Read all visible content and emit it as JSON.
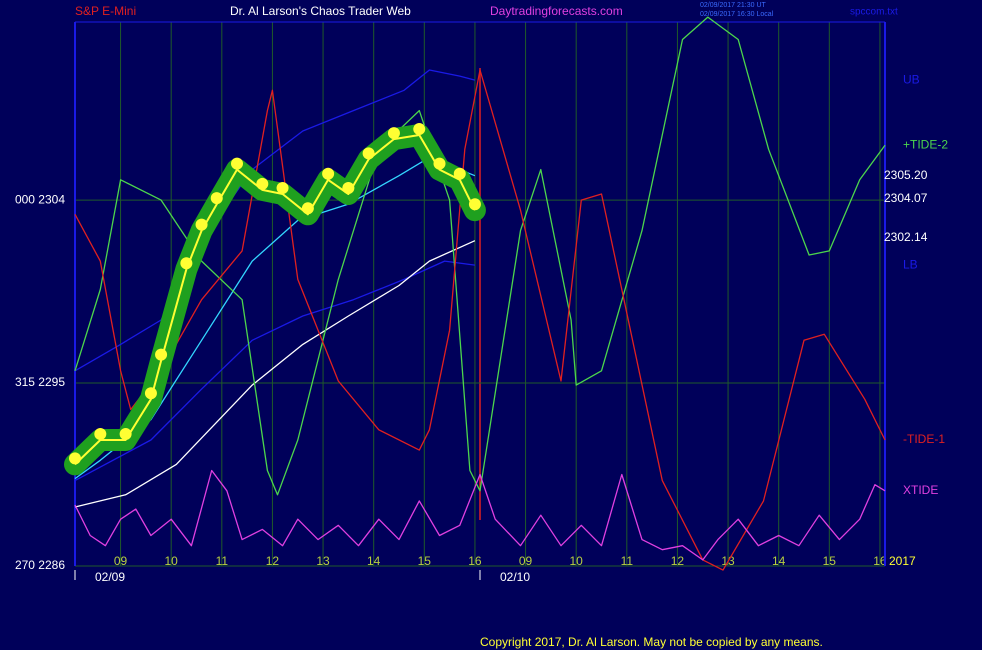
{
  "chart_data": {
    "type": "line",
    "title": "Dr. Al Larson's Chaos Trader Web",
    "symbol": "S&P E-Mini",
    "website": "Daytradingforecasts.com",
    "timestamps": [
      "02/09/2017 21:30 UT",
      "02/09/2017 16:30 Local"
    ],
    "file_name": "spccom.txt",
    "copyright": "Copyright 2017, Dr. Al Larson. May not be copied by any means.",
    "year_label": "2017",
    "xlim": [
      0.1,
      16.1
    ],
    "xticks": [
      {
        "value": 1,
        "label": "09"
      },
      {
        "value": 2,
        "label": "10"
      },
      {
        "value": 3,
        "label": "11"
      },
      {
        "value": 4,
        "label": "12"
      },
      {
        "value": 5,
        "label": "13"
      },
      {
        "value": 6,
        "label": "14"
      },
      {
        "value": 7,
        "label": "15"
      },
      {
        "value": 8,
        "label": "16"
      },
      {
        "value": 9,
        "label": "09"
      },
      {
        "value": 10,
        "label": "10"
      },
      {
        "value": 11,
        "label": "11"
      },
      {
        "value": 12,
        "label": "12"
      },
      {
        "value": 13,
        "label": "13"
      },
      {
        "value": 14,
        "label": "14"
      },
      {
        "value": 15,
        "label": "15"
      },
      {
        "value": 16,
        "label": "16"
      }
    ],
    "date_labels": [
      {
        "value": 0.1,
        "label": "02/09"
      },
      {
        "value": 8.1,
        "label": "02/10"
      }
    ],
    "ylim": [
      2286,
      2312.76
    ],
    "yticks": [
      {
        "value": 2304,
        "label": "000  2304"
      },
      {
        "value": 2295,
        "label": "315  2295"
      },
      {
        "value": 2286,
        "label": "270  2286"
      }
    ],
    "grid": true,
    "price_labels": [
      {
        "value": 2305.2,
        "label": "2305.20"
      },
      {
        "value": 2304.07,
        "label": "2304.07"
      },
      {
        "value": 2302.14,
        "label": "2302.14"
      }
    ],
    "series": [
      {
        "name": "UB",
        "color": "#1a1ae6",
        "x": [
          0.1,
          1.0,
          1.8,
          2.6,
          3.6,
          4.6,
          5.6,
          6.6,
          7.1,
          7.7,
          8.0
        ],
        "values": [
          2295.6,
          2296.9,
          2298.1,
          2302.0,
          2305.5,
          2307.4,
          2308.4,
          2309.4,
          2310.4,
          2310.1,
          2309.9
        ]
      },
      {
        "name": "LB",
        "color": "#1a1ae6",
        "x": [
          0.1,
          1.6,
          2.6,
          3.6,
          4.6,
          5.6,
          6.6,
          7.4,
          8.0
        ],
        "values": [
          2290.2,
          2292.2,
          2294.7,
          2297.1,
          2298.3,
          2299.1,
          2300.1,
          2301.0,
          2300.8
        ]
      },
      {
        "color": "#ffffff",
        "x": [
          0.1,
          1.1,
          2.1,
          3.6,
          4.6,
          5.5,
          6.5,
          7.1,
          8.0
        ],
        "values": [
          2288.9,
          2289.5,
          2291.0,
          2294.9,
          2296.9,
          2298.3,
          2299.8,
          2301.0,
          2302.0
        ]
      },
      {
        "color": "#33d6ff",
        "x": [
          0.1,
          0.6,
          1.6,
          2.6,
          3.6,
          4.5,
          5.5,
          6.5,
          7.1,
          8.0
        ],
        "values": [
          2290.3,
          2291.2,
          2293.2,
          2297.1,
          2301.0,
          2303.0,
          2303.8,
          2305.2,
          2306.1,
          2305.2
        ]
      },
      {
        "name": "+TIDE-2",
        "color": "#4cd64c",
        "x": [
          0.1,
          0.6,
          1.0,
          1.8,
          2.6,
          3.4,
          3.9,
          4.1,
          4.5,
          5.3,
          6.1,
          6.9,
          7.5,
          7.9,
          8.1,
          8.9,
          9.3,
          9.9,
          10.0,
          10.5,
          11.3,
          12.1,
          12.6,
          13.2,
          13.8,
          14.6,
          15.0,
          15.6,
          16.1
        ],
        "values": [
          2295.6,
          2299.6,
          2305.0,
          2304.0,
          2301.0,
          2299.1,
          2290.7,
          2289.5,
          2292.2,
          2300.1,
          2306.5,
          2308.4,
          2304.0,
          2290.7,
          2289.7,
          2302.5,
          2305.5,
          2298.1,
          2294.9,
          2295.6,
          2302.5,
          2311.9,
          2313.0,
          2311.9,
          2306.5,
          2301.3,
          2301.5,
          2305.0,
          2306.7
        ]
      },
      {
        "name": "-TIDE-1",
        "color": "#e02020",
        "x": [
          0.1,
          0.6,
          1.0,
          1.2,
          1.8,
          2.6,
          3.4,
          3.9,
          4.0,
          4.5,
          5.3,
          6.1,
          6.9,
          7.1,
          7.5,
          7.8,
          8.1,
          8.9,
          9.7,
          10.1,
          10.5,
          10.9,
          11.7,
          12.5,
          12.9,
          13.7,
          14.5,
          14.9,
          15.7,
          16.1
        ],
        "values": [
          2303.3,
          2301.0,
          2295.6,
          2293.7,
          2295.6,
          2299.1,
          2301.5,
          2308.4,
          2309.4,
          2300.1,
          2295.1,
          2292.7,
          2291.7,
          2292.7,
          2297.6,
          2306.5,
          2310.4,
          2303.5,
          2295.1,
          2304.0,
          2304.3,
          2299.6,
          2290.2,
          2286.3,
          2285.8,
          2289.2,
          2297.1,
          2297.4,
          2294.2,
          2292.2
        ]
      },
      {
        "name": "XTIDE",
        "color": "#e040e0",
        "x": [
          0.1,
          0.4,
          0.7,
          1.0,
          1.3,
          1.6,
          2.0,
          2.4,
          2.8,
          3.1,
          3.4,
          3.8,
          4.2,
          4.5,
          4.9,
          5.3,
          5.7,
          6.1,
          6.5,
          6.9,
          7.3,
          7.7,
          8.1,
          8.4,
          8.9,
          9.3,
          9.7,
          10.1,
          10.5,
          10.9,
          11.3,
          11.7,
          12.1,
          12.5,
          12.8,
          13.2,
          13.6,
          14.0,
          14.4,
          14.8,
          15.2,
          15.6,
          15.9,
          16.1
        ],
        "values": [
          2289.0,
          2287.5,
          2287.0,
          2288.3,
          2288.8,
          2287.5,
          2288.3,
          2287.0,
          2290.7,
          2289.7,
          2287.3,
          2287.8,
          2287.0,
          2288.3,
          2287.3,
          2288.0,
          2287.0,
          2288.3,
          2287.3,
          2289.2,
          2287.5,
          2288.0,
          2290.5,
          2288.3,
          2287.0,
          2288.5,
          2287.0,
          2288.0,
          2287.0,
          2290.5,
          2287.3,
          2286.8,
          2287.0,
          2286.3,
          2287.3,
          2288.3,
          2287.0,
          2287.5,
          2287.0,
          2288.5,
          2287.3,
          2288.3,
          2290.0,
          2289.7
        ]
      },
      {
        "color": "#ffff33",
        "glow": "#1fa01f",
        "dots": true,
        "x": [
          0.1,
          0.6,
          1.1,
          1.6,
          1.8,
          2.3,
          2.6,
          2.9,
          3.3,
          3.8,
          4.2,
          4.7,
          5.1,
          5.5,
          5.9,
          6.4,
          6.9,
          7.3,
          7.7,
          8.0
        ],
        "values": [
          2291.0,
          2292.2,
          2292.2,
          2294.2,
          2296.1,
          2300.6,
          2302.5,
          2303.8,
          2305.5,
          2304.5,
          2304.3,
          2303.3,
          2305.0,
          2304.3,
          2306.0,
          2307.0,
          2307.2,
          2305.5,
          2305.0,
          2303.5
        ]
      }
    ]
  }
}
